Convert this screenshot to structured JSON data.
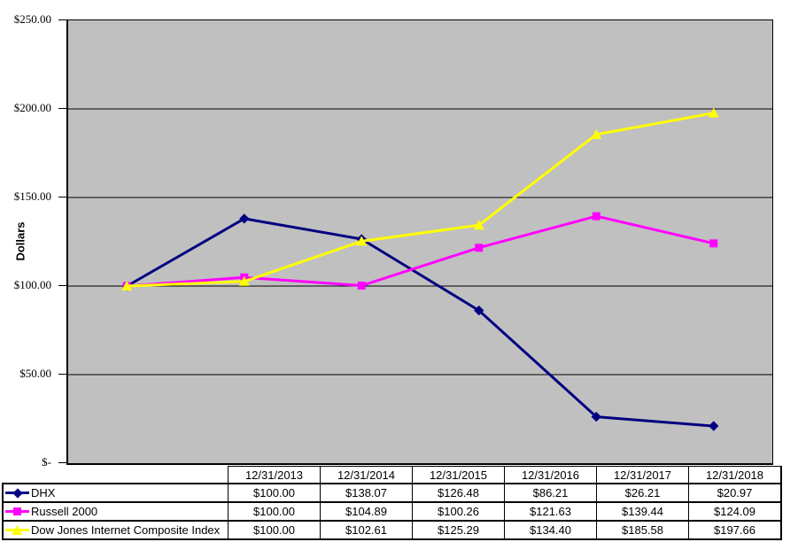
{
  "chart_data": {
    "type": "line",
    "title": "",
    "xlabel": "",
    "ylabel": "Dollars",
    "ylim": [
      0,
      250
    ],
    "grid": true,
    "plot_background": "#C0C0C0",
    "legend_position": "table-left-column",
    "categories": [
      "12/31/2013",
      "12/31/2014",
      "12/31/2015",
      "12/31/2016",
      "12/31/2017",
      "12/31/2018"
    ],
    "series": [
      {
        "name": "DHX",
        "color": "#000080",
        "marker": "diamond",
        "values": [
          100.0,
          138.07,
          126.48,
          86.21,
          26.21,
          20.97
        ]
      },
      {
        "name": "Russell 2000",
        "color": "#FF00FF",
        "marker": "square",
        "values": [
          100.0,
          104.89,
          100.26,
          121.63,
          139.44,
          124.09
        ]
      },
      {
        "name": "Dow Jones Internet Composite Index",
        "color": "#FFFF00",
        "marker": "triangle",
        "values": [
          100.0,
          102.61,
          125.29,
          134.4,
          185.58,
          197.66
        ]
      }
    ],
    "y_ticks": [
      {
        "label": "$250.00",
        "value": 250
      },
      {
        "label": "$200.00",
        "value": 200
      },
      {
        "label": "$150.00",
        "value": 150
      },
      {
        "label": "$100.00",
        "value": 100
      },
      {
        "label": "$50.00",
        "value": 50
      },
      {
        "label": "$-",
        "value": 0
      }
    ]
  },
  "table": {
    "columns": [
      "12/31/2013",
      "12/31/2014",
      "12/31/2015",
      "12/31/2016",
      "12/31/2017",
      "12/31/2018"
    ],
    "rows": [
      {
        "label": "DHX",
        "values": [
          "$100.00",
          "$138.07",
          "$126.48",
          "$86.21",
          "$26.21",
          "$20.97"
        ]
      },
      {
        "label": "Russell 2000",
        "values": [
          "$100.00",
          "$104.89",
          "$100.26",
          "$121.63",
          "$139.44",
          "$124.09"
        ]
      },
      {
        "label": "Dow Jones Internet Composite Index",
        "values": [
          "$100.00",
          "$102.61",
          "$125.29",
          "$134.40",
          "$185.58",
          "$197.66"
        ]
      }
    ]
  }
}
